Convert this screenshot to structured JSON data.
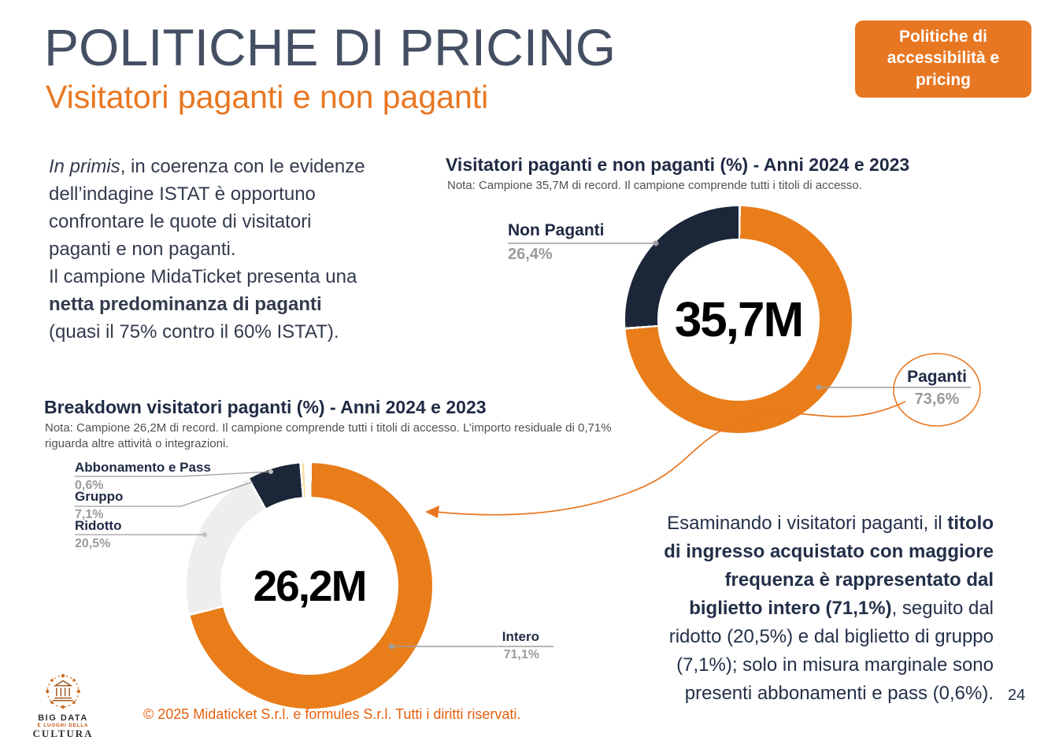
{
  "colors": {
    "accent_orange": "#E87722",
    "navy": "#1F2A44",
    "label_gray": "#9B9B9B",
    "title_gray_blue": "#454F63",
    "copyright_orange": "#E5600F"
  },
  "slide": {
    "title": "POLITICHE DI PRICING",
    "subtitle": "Visitatori paganti e non paganti",
    "badge": "Politiche di accessibilità e pricing",
    "page_number": "24",
    "footer": {
      "logo_line1": "BIG DATA",
      "logo_line2": "E LUOGHI DELLA",
      "logo_line3": "CULTURA",
      "copyright": "© 2025 Midaticket S.r.l. e formules S.r.l. Tutti i diritti riservati."
    },
    "left_paragraph": {
      "segments": [
        {
          "t": "In primis",
          "i": true
        },
        {
          "t": ", in coerenza con le evidenze"
        },
        {
          "br": true
        },
        {
          "t": "dell’indagine ISTAT è opportuno"
        },
        {
          "br": true
        },
        {
          "t": "confrontare le quote di visitatori"
        },
        {
          "br": true
        },
        {
          "t": "paganti e non paganti."
        },
        {
          "br": true
        },
        {
          "t": "Il campione MidaTicket presenta una"
        },
        {
          "br": true
        },
        {
          "t": "netta predominanza di paganti",
          "b": true
        },
        {
          "br": true
        },
        {
          "t": "(quasi il 75% contro il 60% ISTAT)."
        }
      ]
    },
    "right_paragraph": {
      "segments": [
        {
          "t": "Esaminando i visitatori paganti, il "
        },
        {
          "t": "titolo",
          "b": true
        },
        {
          "br": true
        },
        {
          "t": "di ingresso acquistato con maggiore",
          "b": true
        },
        {
          "br": true
        },
        {
          "t": "frequenza è rappresentato dal",
          "b": true
        },
        {
          "br": true
        },
        {
          "t": "biglietto intero (71,1%)",
          "b": true
        },
        {
          "t": ", seguito dal"
        },
        {
          "br": true
        },
        {
          "t": "ridotto (20,5%) e dal biglietto di gruppo"
        },
        {
          "br": true
        },
        {
          "t": "(7,1%); solo in misura marginale sono"
        },
        {
          "br": true
        },
        {
          "t": "presenti abbonamenti e pass (0,6%)."
        }
      ]
    }
  },
  "chart_data": [
    {
      "type": "pie",
      "subtype": "donut",
      "title": "Visitatori paganti e non paganti  (%) - Anni 2024 e 2023",
      "note": "Nota: Campione 35,7M di record. Il campione comprende tutti i titoli di accesso.",
      "center_label": "35,7M",
      "legend_position": "callouts",
      "slices": [
        {
          "label": "Paganti",
          "value": 73.6,
          "display": "73,6%",
          "color": "#E87D1A"
        },
        {
          "label": "Non Paganti",
          "value": 26.4,
          "display": "26,4%",
          "color": "#1B2638"
        }
      ]
    },
    {
      "type": "pie",
      "subtype": "donut",
      "title": "Breakdown visitatori paganti  (%) - Anni 2024 e 2023",
      "note": "Nota: Campione 26,2M di record. Il campione comprende tutti i titoli di accesso. L’importo residuale di 0,71% riguarda altre attività o integrazioni.",
      "center_label": "26,2M",
      "legend_position": "callouts",
      "slices": [
        {
          "label": "Intero",
          "value": 71.1,
          "display": "71,1%",
          "color": "#E87D1A"
        },
        {
          "label": "Ridotto",
          "value": 20.5,
          "display": "20,5%",
          "color": "#EEEEEE"
        },
        {
          "label": "Gruppo",
          "value": 7.1,
          "display": "7,1%",
          "color": "#1B2638"
        },
        {
          "label": "Abbonamento e Pass",
          "value": 0.6,
          "display": "0,6%",
          "color": "#F5DFA4"
        },
        {
          "label": "Residuale (altre attività o integrazioni)",
          "value": 0.71,
          "display": "0,71%",
          "color": "#FFFFFF"
        }
      ]
    }
  ]
}
